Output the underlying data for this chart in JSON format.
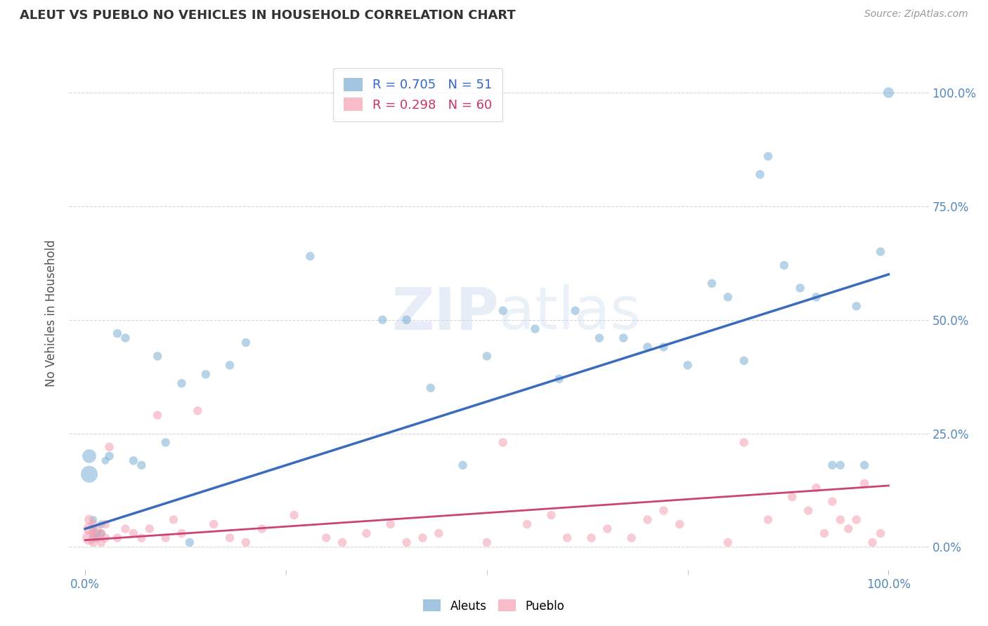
{
  "title": "ALEUT VS PUEBLO NO VEHICLES IN HOUSEHOLD CORRELATION CHART",
  "source": "Source: ZipAtlas.com",
  "ylabel": "No Vehicles in Household",
  "background_color": "#ffffff",
  "grid_color": "#cccccc",
  "watermark": "ZIPatlas",
  "aleut_color": "#7bafd4",
  "pueblo_color": "#f4a0b0",
  "aleut_line_color": "#3a6bbf",
  "pueblo_line_color": "#cc4477",
  "aleut_R": 0.705,
  "aleut_N": 51,
  "pueblo_R": 0.298,
  "pueblo_N": 60,
  "xlim": [
    -0.02,
    1.05
  ],
  "ylim": [
    -0.05,
    1.08
  ],
  "ytick_positions": [
    0.0,
    0.25,
    0.5,
    0.75,
    1.0
  ],
  "ytick_labels": [
    "0.0%",
    "25.0%",
    "50.0%",
    "75.0%",
    "100.0%"
  ],
  "xtick_positions": [
    0.0,
    1.0
  ],
  "xtick_labels": [
    "0.0%",
    "100.0%"
  ],
  "aleut_line": [
    0.0,
    0.04,
    1.0,
    0.6
  ],
  "pueblo_line": [
    0.0,
    0.015,
    1.0,
    0.135
  ],
  "aleut_x": [
    0.005,
    0.005,
    0.01,
    0.01,
    0.01,
    0.015,
    0.015,
    0.02,
    0.02,
    0.025,
    0.03,
    0.04,
    0.05,
    0.06,
    0.07,
    0.09,
    0.1,
    0.13,
    0.15,
    0.12,
    0.18,
    0.2,
    0.28,
    0.37,
    0.4,
    0.43,
    0.47,
    0.5,
    0.52,
    0.56,
    0.59,
    0.61,
    0.64,
    0.67,
    0.7,
    0.72,
    0.75,
    0.78,
    0.8,
    0.82,
    0.84,
    0.85,
    0.87,
    0.89,
    0.91,
    0.93,
    0.94,
    0.96,
    0.97,
    0.99,
    1.0
  ],
  "aleut_y": [
    0.16,
    0.2,
    0.02,
    0.04,
    0.06,
    0.02,
    0.03,
    0.03,
    0.05,
    0.19,
    0.2,
    0.47,
    0.46,
    0.19,
    0.18,
    0.42,
    0.23,
    0.01,
    0.38,
    0.36,
    0.4,
    0.45,
    0.64,
    0.5,
    0.5,
    0.35,
    0.18,
    0.42,
    0.52,
    0.48,
    0.37,
    0.52,
    0.46,
    0.46,
    0.44,
    0.44,
    0.4,
    0.58,
    0.55,
    0.41,
    0.82,
    0.86,
    0.62,
    0.57,
    0.55,
    0.18,
    0.18,
    0.53,
    0.18,
    0.65,
    1.0
  ],
  "aleut_s": [
    300,
    200,
    80,
    60,
    60,
    60,
    60,
    60,
    60,
    60,
    80,
    80,
    80,
    80,
    80,
    80,
    80,
    80,
    80,
    80,
    80,
    80,
    80,
    80,
    80,
    80,
    80,
    80,
    80,
    80,
    80,
    80,
    80,
    80,
    80,
    80,
    80,
    80,
    80,
    80,
    80,
    80,
    80,
    80,
    80,
    80,
    80,
    80,
    80,
    80,
    120
  ],
  "pueblo_x": [
    0.005,
    0.005,
    0.005,
    0.01,
    0.01,
    0.01,
    0.015,
    0.015,
    0.02,
    0.02,
    0.025,
    0.025,
    0.03,
    0.04,
    0.05,
    0.06,
    0.07,
    0.08,
    0.09,
    0.1,
    0.11,
    0.12,
    0.14,
    0.16,
    0.18,
    0.2,
    0.22,
    0.26,
    0.3,
    0.32,
    0.35,
    0.38,
    0.4,
    0.42,
    0.44,
    0.5,
    0.52,
    0.55,
    0.58,
    0.6,
    0.63,
    0.65,
    0.68,
    0.7,
    0.72,
    0.74,
    0.8,
    0.82,
    0.85,
    0.88,
    0.9,
    0.91,
    0.92,
    0.93,
    0.94,
    0.95,
    0.96,
    0.97,
    0.98,
    0.99
  ],
  "pueblo_y": [
    0.02,
    0.04,
    0.06,
    0.01,
    0.03,
    0.05,
    0.02,
    0.04,
    0.01,
    0.03,
    0.02,
    0.05,
    0.22,
    0.02,
    0.04,
    0.03,
    0.02,
    0.04,
    0.29,
    0.02,
    0.06,
    0.03,
    0.3,
    0.05,
    0.02,
    0.01,
    0.04,
    0.07,
    0.02,
    0.01,
    0.03,
    0.05,
    0.01,
    0.02,
    0.03,
    0.01,
    0.23,
    0.05,
    0.07,
    0.02,
    0.02,
    0.04,
    0.02,
    0.06,
    0.08,
    0.05,
    0.01,
    0.23,
    0.06,
    0.11,
    0.08,
    0.13,
    0.03,
    0.1,
    0.06,
    0.04,
    0.06,
    0.14,
    0.01,
    0.03
  ],
  "pueblo_s": [
    200,
    150,
    100,
    80,
    80,
    80,
    80,
    80,
    80,
    80,
    80,
    80,
    80,
    80,
    80,
    80,
    80,
    80,
    80,
    80,
    80,
    80,
    80,
    80,
    80,
    80,
    80,
    80,
    80,
    80,
    80,
    80,
    80,
    80,
    80,
    80,
    80,
    80,
    80,
    80,
    80,
    80,
    80,
    80,
    80,
    80,
    80,
    80,
    80,
    80,
    80,
    80,
    80,
    80,
    80,
    80,
    80,
    80,
    80,
    80
  ]
}
